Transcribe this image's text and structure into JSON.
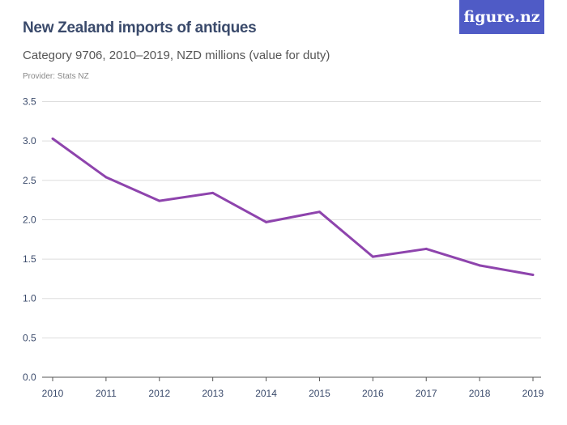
{
  "title": "New Zealand imports of antiques",
  "subtitle": "Category 9706, 2010–2019, NZD millions (value for duty)",
  "provider": "Provider: Stats NZ",
  "logo": "figure.nz",
  "colors": {
    "line": "#8e44ad",
    "logo_bg": "#4f5bc6",
    "text": "#3a4a6b",
    "grid": "#dddddd"
  },
  "chart_data": {
    "type": "line",
    "title": "New Zealand imports of antiques",
    "x": [
      "2010",
      "2011",
      "2012",
      "2013",
      "2014",
      "2015",
      "2016",
      "2017",
      "2018",
      "2019"
    ],
    "series": [
      {
        "values": [
          3.03,
          2.54,
          2.24,
          2.34,
          1.97,
          2.1,
          1.53,
          1.63,
          1.42,
          1.3
        ]
      }
    ],
    "yticks": [
      "0.0",
      "0.5",
      "1.0",
      "1.5",
      "2.0",
      "2.5",
      "3.0",
      "3.5"
    ],
    "ylim": [
      0,
      3.5
    ],
    "grid": true,
    "xlabel": "",
    "ylabel": ""
  }
}
